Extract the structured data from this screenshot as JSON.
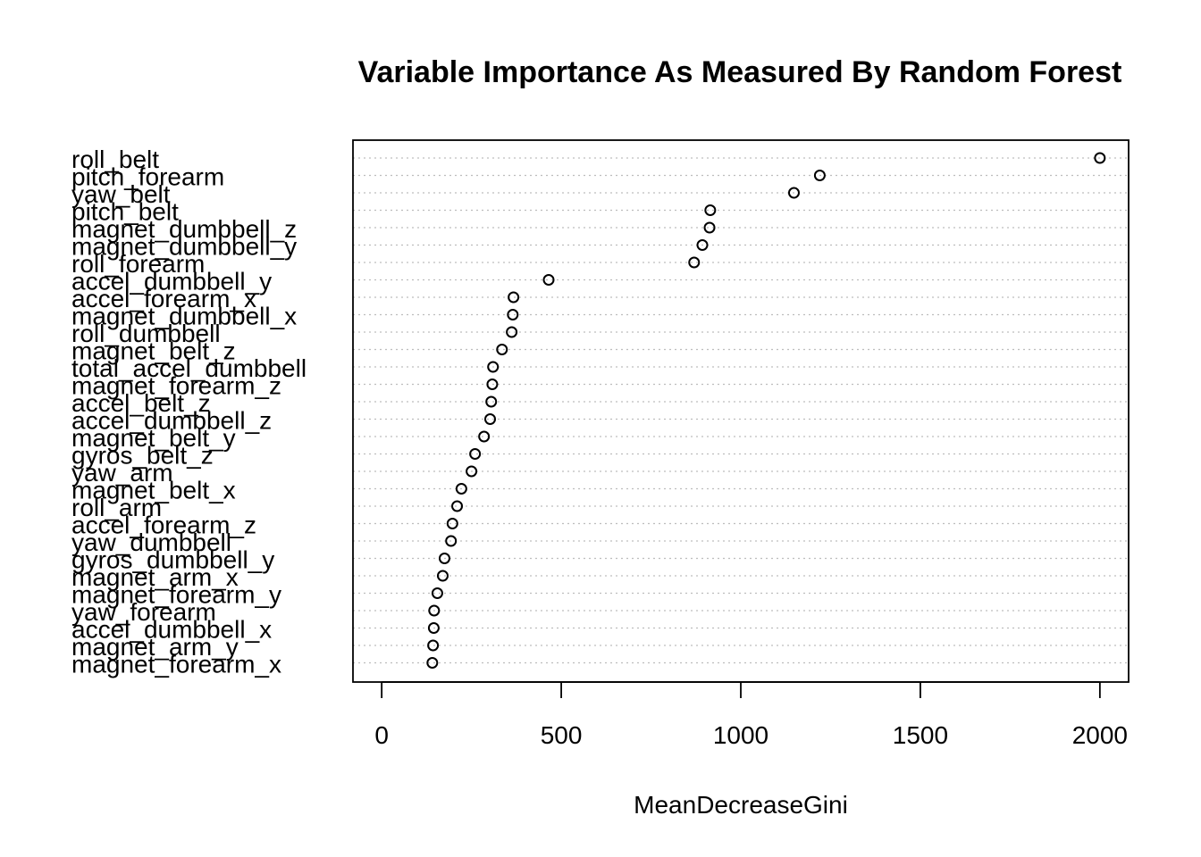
{
  "chart_data": {
    "type": "scatter",
    "title": "Variable Importance As Measured By Random Forest",
    "xlabel": "MeanDecreaseGini",
    "ylabel": "",
    "xlim": [
      -80,
      2080
    ],
    "xticks": [
      0,
      500,
      1000,
      1500,
      2000
    ],
    "xtick_labels": [
      "0",
      "500",
      "1000",
      "1500",
      "2000"
    ],
    "grid": "dotted horizontal lines",
    "categories": [
      "roll_belt",
      "pitch_forearm",
      "yaw_belt",
      "pitch_belt",
      "magnet_dumbbell_z",
      "magnet_dumbbell_y",
      "roll_forearm",
      "accel_dumbbell_y",
      "accel_forearm_x",
      "magnet_dumbbell_x",
      "roll_dumbbell",
      "magnet_belt_z",
      "total_accel_dumbbell",
      "magnet_forearm_z",
      "accel_belt_z",
      "accel_dumbbell_z",
      "magnet_belt_y",
      "gyros_belt_z",
      "yaw_arm",
      "magnet_belt_x",
      "roll_arm",
      "accel_forearm_z",
      "yaw_dumbbell",
      "gyros_dumbbell_y",
      "magnet_arm_x",
      "magnet_forearm_y",
      "yaw_forearm",
      "accel_dumbbell_x",
      "magnet_arm_y",
      "magnet_forearm_x"
    ],
    "values": [
      2000,
      1220,
      1148,
      915,
      913,
      893,
      870,
      465,
      367,
      365,
      362,
      335,
      310,
      308,
      305,
      302,
      285,
      260,
      250,
      222,
      210,
      197,
      193,
      175,
      170,
      155,
      146,
      145,
      143,
      141
    ]
  }
}
